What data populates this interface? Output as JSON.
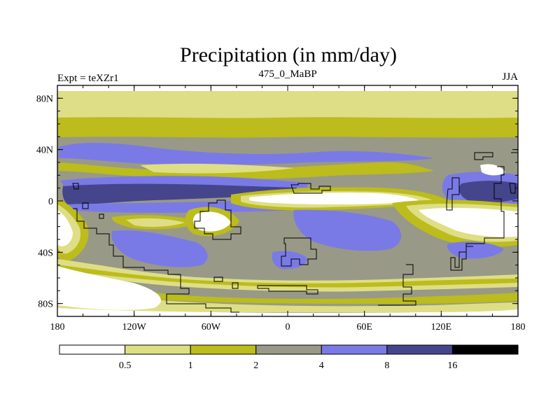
{
  "chart_data": {
    "type": "heatmap",
    "title": "Precipitation (in mm/day)",
    "left_label": "Expt = teXZr1",
    "center_label": "475_0_MaBP",
    "right_label": "JJA",
    "units": "mm/day",
    "x_range": [
      -180,
      180
    ],
    "y_range": [
      -90,
      90
    ],
    "x_ticks": [
      {
        "value": -180,
        "label": "180"
      },
      {
        "value": -120,
        "label": "120W"
      },
      {
        "value": -60,
        "label": "60W"
      },
      {
        "value": 0,
        "label": "0"
      },
      {
        "value": 60,
        "label": "60E"
      },
      {
        "value": 120,
        "label": "120E"
      },
      {
        "value": 180,
        "label": "180"
      }
    ],
    "y_ticks": [
      {
        "value": 80,
        "label": "80N"
      },
      {
        "value": 40,
        "label": "40N"
      },
      {
        "value": 0,
        "label": "0"
      },
      {
        "value": -40,
        "label": "40S"
      },
      {
        "value": -80,
        "label": "80S"
      }
    ],
    "levels": [
      0.5,
      1,
      2,
      4,
      8,
      16
    ],
    "level_labels": [
      "0.5",
      "1",
      "2",
      "4",
      "8",
      "16"
    ],
    "colors": [
      "#ffffff",
      "#dede86",
      "#bcbc1c",
      "#999987",
      "#7a7ae6",
      "#45458c",
      "#000000"
    ],
    "bands": [
      {
        "lat": [
          74,
          90
        ],
        "range": "0.5-1"
      },
      {
        "lat": [
          64,
          74
        ],
        "range": "1-2"
      },
      {
        "lat": [
          50,
          64
        ],
        "range": "2-4"
      },
      {
        "lat": [
          4,
          10
        ],
        "range": "8-16"
      },
      {
        "lat": [
          -10,
          2
        ],
        "range": "0-0.5",
        "lon": [
          -40,
          75
        ]
      },
      {
        "lat": [
          -82,
          -76
        ],
        "range": "1-2"
      },
      {
        "lat": [
          -90,
          -82
        ],
        "range": "0.5-1"
      }
    ]
  }
}
